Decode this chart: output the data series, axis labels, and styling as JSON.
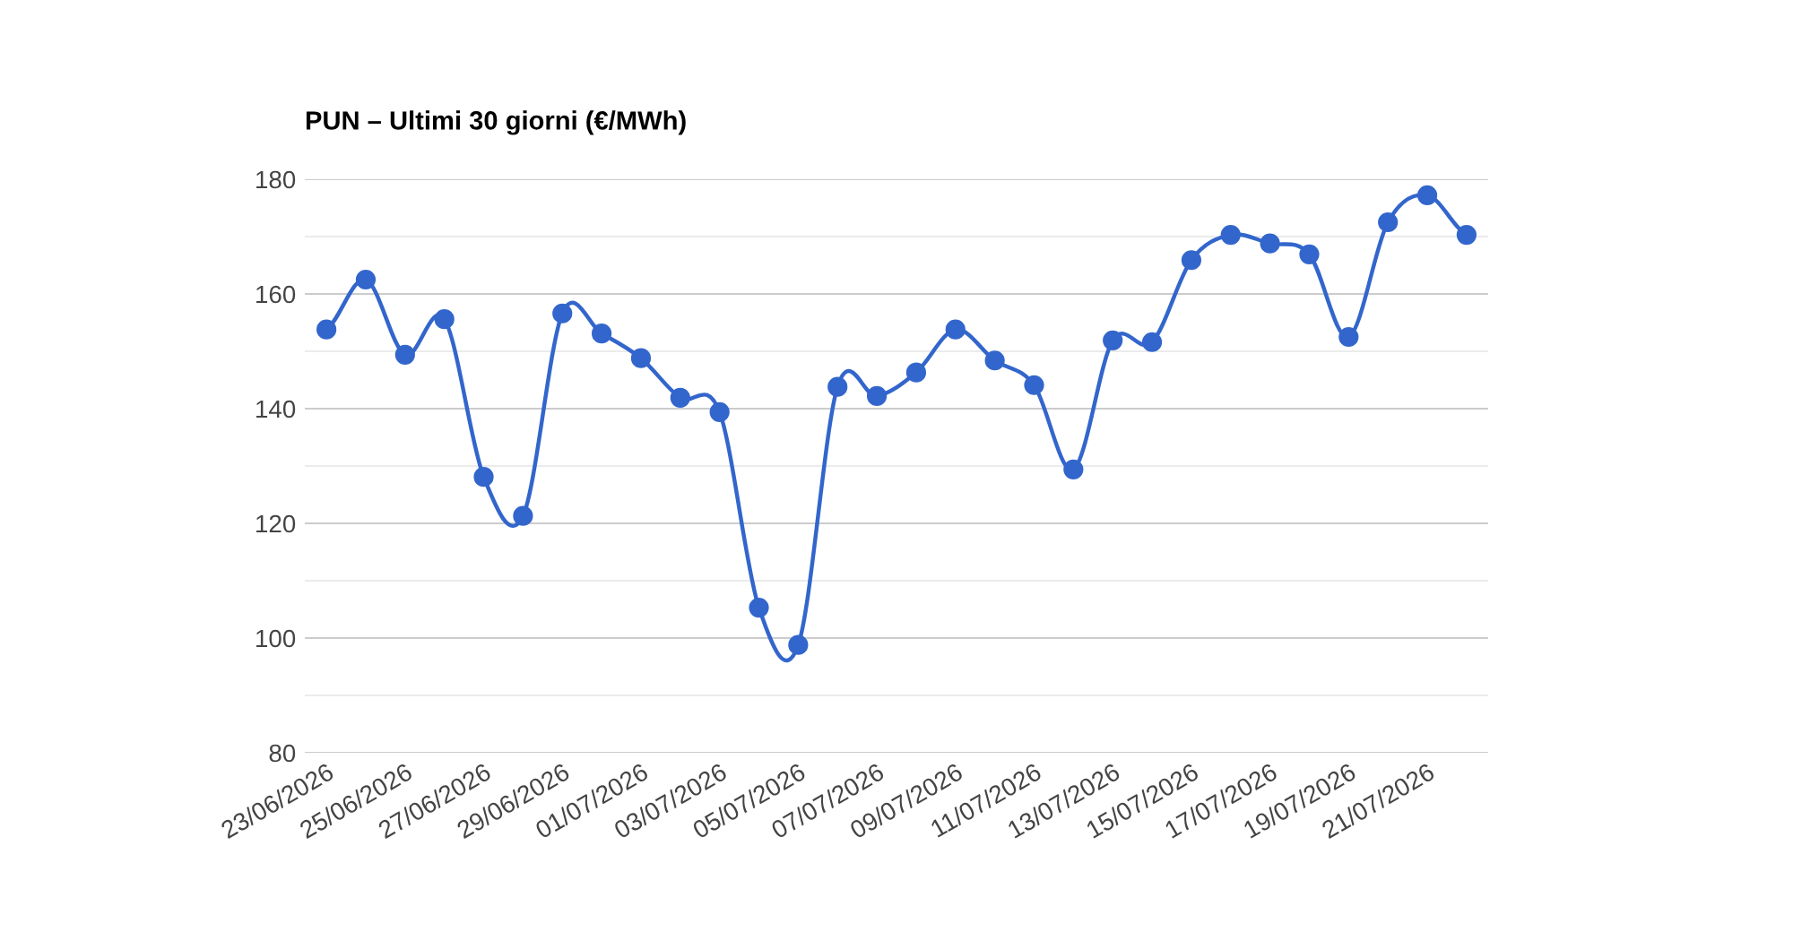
{
  "chart_data": {
    "type": "line",
    "title": "PUN – Ultimi 30 giorni (€/MWh)",
    "categories": [
      "23/06/2026",
      null,
      "25/06/2026",
      null,
      "27/06/2026",
      null,
      "29/06/2026",
      null,
      "01/07/2026",
      null,
      "03/07/2026",
      null,
      "05/07/2026",
      null,
      "07/07/2026",
      null,
      "09/07/2026",
      null,
      "11/07/2026",
      null,
      "13/07/2026",
      null,
      "15/07/2026",
      null,
      "17/07/2026",
      null,
      "19/07/2026",
      null,
      "21/07/2026",
      null
    ],
    "series": [
      {
        "color": "#3366cc",
        "values": [
          153.8,
          162.5,
          149.4,
          155.6,
          128.1,
          121.3,
          156.6,
          153.1,
          148.8,
          141.9,
          139.4,
          105.3,
          98.8,
          143.8,
          142.2,
          146.3,
          153.8,
          148.4,
          144.1,
          129.4,
          151.9,
          151.6,
          165.9,
          170.3,
          168.8,
          166.9,
          152.5,
          172.5,
          177.2,
          170.3
        ]
      }
    ],
    "ylim": [
      80,
      180
    ],
    "yticks": [
      80,
      {
        "value": 90,
        "label": null
      },
      100,
      {
        "value": 110,
        "label": null
      },
      120,
      {
        "value": 130,
        "label": null
      },
      140,
      {
        "value": 150,
        "label": null
      },
      160,
      {
        "value": 170,
        "label": null
      },
      180
    ],
    "grid": "y",
    "marker": "circle",
    "line_style": "solid",
    "legend": false
  }
}
